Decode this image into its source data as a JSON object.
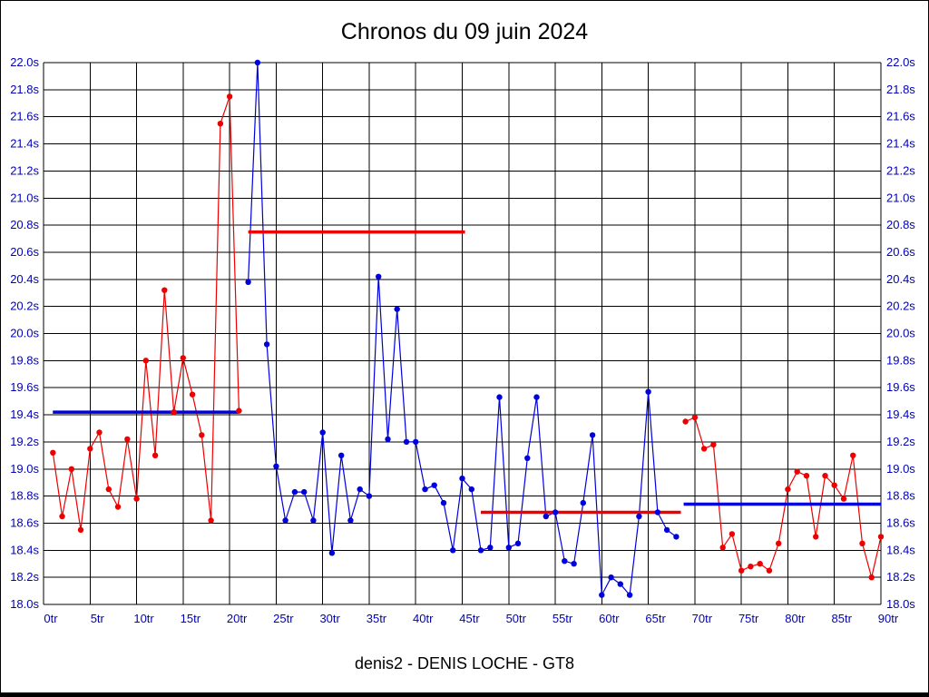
{
  "page": {
    "title": "Chronos du 09 juin 2024",
    "caption": "denis2 - DENIS LOCHE - GT8"
  },
  "chart_data": {
    "type": "line",
    "title": "Chronos du 09 juin 2024",
    "caption": "denis2 - DENIS LOCHE - GT8",
    "x_unit": "tr",
    "y_unit": "s",
    "xlim": [
      0,
      90
    ],
    "ylim": [
      18.0,
      22.0
    ],
    "x_tick_step": 5,
    "y_tick_step": 0.2,
    "grid": true,
    "legend": "none",
    "axis_label_color": "#0000bb",
    "colors": {
      "red_stint": "#ee0000",
      "blue_stint": "#0000dd",
      "grid": "#000000"
    },
    "series": [
      {
        "name": "stint-1-red",
        "color": "#ee0000",
        "points": [
          [
            1,
            19.12
          ],
          [
            2,
            18.65
          ],
          [
            3,
            19.0
          ],
          [
            4,
            18.55
          ],
          [
            5,
            19.15
          ],
          [
            6,
            19.27
          ],
          [
            7,
            18.85
          ],
          [
            8,
            18.72
          ],
          [
            9,
            19.22
          ],
          [
            10,
            18.78
          ],
          [
            11,
            19.8
          ],
          [
            12,
            19.1
          ],
          [
            13,
            20.32
          ],
          [
            14,
            19.42
          ],
          [
            15,
            19.82
          ],
          [
            16,
            19.55
          ],
          [
            17,
            19.25
          ],
          [
            18,
            18.62
          ],
          [
            19,
            21.55
          ],
          [
            20,
            21.75
          ],
          [
            21,
            19.43
          ]
        ]
      },
      {
        "name": "stint-2-blue",
        "color": "#0000dd",
        "points": [
          [
            22,
            20.38
          ],
          [
            23,
            22.0
          ],
          [
            24,
            19.92
          ],
          [
            25,
            19.02
          ],
          [
            26,
            18.62
          ],
          [
            27,
            18.83
          ],
          [
            28,
            18.83
          ],
          [
            29,
            18.62
          ],
          [
            30,
            19.27
          ],
          [
            31,
            18.38
          ],
          [
            32,
            19.1
          ],
          [
            33,
            18.62
          ],
          [
            34,
            18.85
          ],
          [
            35,
            18.8
          ],
          [
            36,
            20.42
          ],
          [
            37,
            19.22
          ],
          [
            38,
            20.18
          ],
          [
            39,
            19.2
          ],
          [
            40,
            19.2
          ],
          [
            41,
            18.85
          ],
          [
            42,
            18.88
          ],
          [
            43,
            18.75
          ],
          [
            44,
            18.4
          ],
          [
            45,
            18.93
          ],
          [
            46,
            18.85
          ],
          [
            47,
            18.4
          ],
          [
            48,
            18.42
          ],
          [
            49,
            19.53
          ],
          [
            50,
            18.42
          ],
          [
            51,
            18.45
          ],
          [
            52,
            19.08
          ],
          [
            53,
            19.53
          ],
          [
            54,
            18.65
          ],
          [
            55,
            18.68
          ],
          [
            56,
            18.32
          ],
          [
            57,
            18.3
          ],
          [
            58,
            18.75
          ],
          [
            59,
            19.25
          ],
          [
            60,
            18.07
          ],
          [
            61,
            18.2
          ],
          [
            62,
            18.15
          ],
          [
            63,
            18.07
          ],
          [
            64,
            18.65
          ],
          [
            65,
            19.57
          ],
          [
            66,
            18.68
          ],
          [
            67,
            18.55
          ],
          [
            68,
            18.5
          ]
        ]
      },
      {
        "name": "stint-3-red",
        "color": "#ee0000",
        "points": [
          [
            69,
            19.35
          ],
          [
            70,
            19.38
          ],
          [
            71,
            19.15
          ],
          [
            72,
            19.18
          ],
          [
            73,
            18.42
          ],
          [
            74,
            18.52
          ],
          [
            75,
            18.25
          ],
          [
            76,
            18.28
          ],
          [
            77,
            18.3
          ],
          [
            78,
            18.25
          ],
          [
            79,
            18.45
          ],
          [
            80,
            18.85
          ],
          [
            81,
            18.98
          ],
          [
            82,
            18.95
          ],
          [
            83,
            18.5
          ],
          [
            84,
            18.95
          ],
          [
            85,
            18.88
          ],
          [
            86,
            18.78
          ],
          [
            87,
            19.1
          ],
          [
            88,
            18.45
          ],
          [
            89,
            18.2
          ],
          [
            90,
            18.5
          ]
        ]
      }
    ],
    "avg_lines": [
      {
        "color": "#0000dd",
        "value": 19.42,
        "x_start": 1,
        "x_end": 21
      },
      {
        "color": "#ee0000",
        "value": 20.75,
        "x_start": 22,
        "x_end": 45.3
      },
      {
        "color": "#ee0000",
        "value": 18.68,
        "x_start": 47,
        "x_end": 68.5
      },
      {
        "color": "#0000dd",
        "value": 18.74,
        "x_start": 68.8,
        "x_end": 90
      }
    ]
  }
}
